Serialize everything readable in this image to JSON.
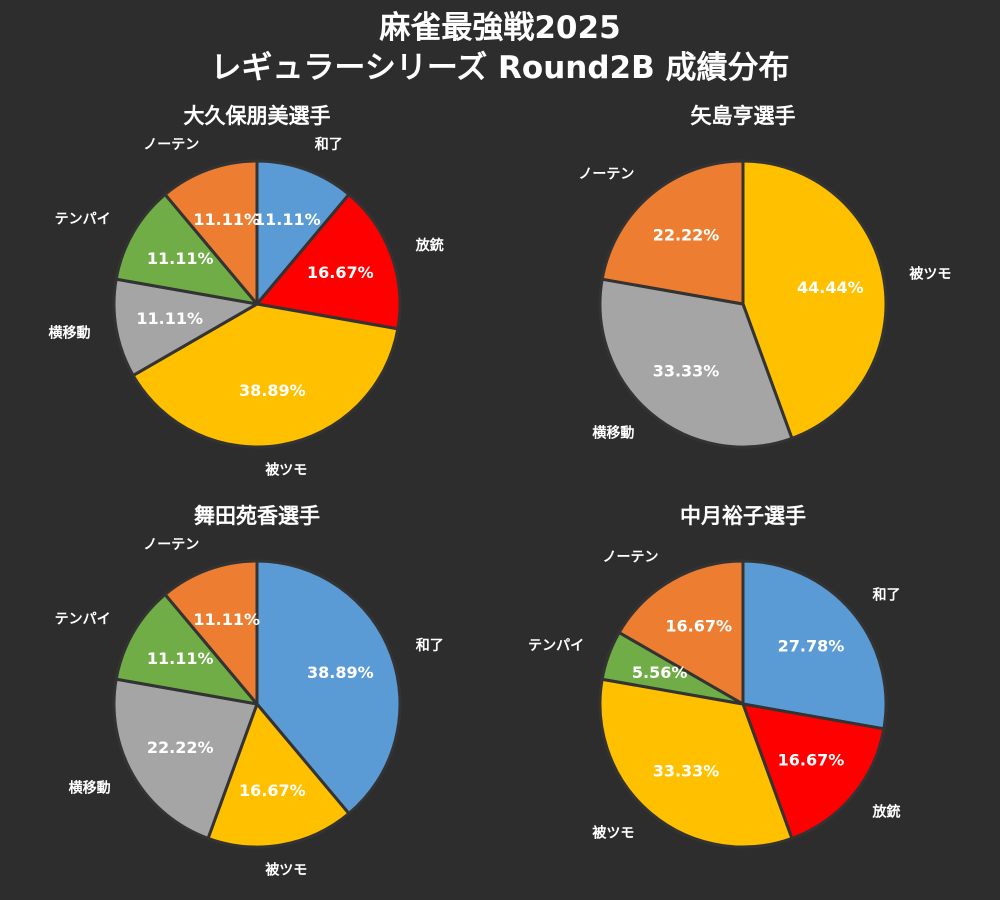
{
  "title": "麻雀最強戦2025",
  "subtitle": "レギュラーシリーズ Round2B 成績分布",
  "colors": {
    "background": "#2d2d2d",
    "和了": "#5b9bd5",
    "放銃": "#ff0000",
    "被ツモ": "#ffc000",
    "横移動": "#a5a5a5",
    "テンパイ": "#70ad47",
    "ノーテン": "#ed7d31",
    "slice_border": "#333333"
  },
  "chart_data": [
    {
      "type": "pie",
      "title": "大久保朋美選手",
      "categories": [
        "和了",
        "放銃",
        "被ツモ",
        "横移動",
        "テンパイ",
        "ノーテン"
      ],
      "values": [
        11.11,
        16.67,
        38.89,
        11.11,
        11.11,
        11.11
      ],
      "value_labels": [
        "11.11%",
        "16.67%",
        "38.89%",
        "11.11%",
        "11.11%",
        "11.11%"
      ]
    },
    {
      "type": "pie",
      "title": "矢島亨選手",
      "categories": [
        "被ツモ",
        "横移動",
        "ノーテン"
      ],
      "values": [
        44.44,
        33.33,
        22.22
      ],
      "value_labels": [
        "44.44%",
        "33.33%",
        "22.22%"
      ]
    },
    {
      "type": "pie",
      "title": "舞田苑香選手",
      "categories": [
        "和了",
        "被ツモ",
        "横移動",
        "テンパイ",
        "ノーテン"
      ],
      "values": [
        38.89,
        16.67,
        22.22,
        11.11,
        11.11
      ],
      "value_labels": [
        "38.89%",
        "16.67%",
        "22.22%",
        "11.11%",
        "11.11%"
      ]
    },
    {
      "type": "pie",
      "title": "中月裕子選手",
      "categories": [
        "和了",
        "放銃",
        "被ツモ",
        "テンパイ",
        "ノーテン"
      ],
      "values": [
        27.78,
        16.67,
        33.33,
        5.56,
        16.67
      ],
      "value_labels": [
        "27.78%",
        "16.67%",
        "33.33%",
        "5.56%",
        "16.67%"
      ]
    }
  ]
}
